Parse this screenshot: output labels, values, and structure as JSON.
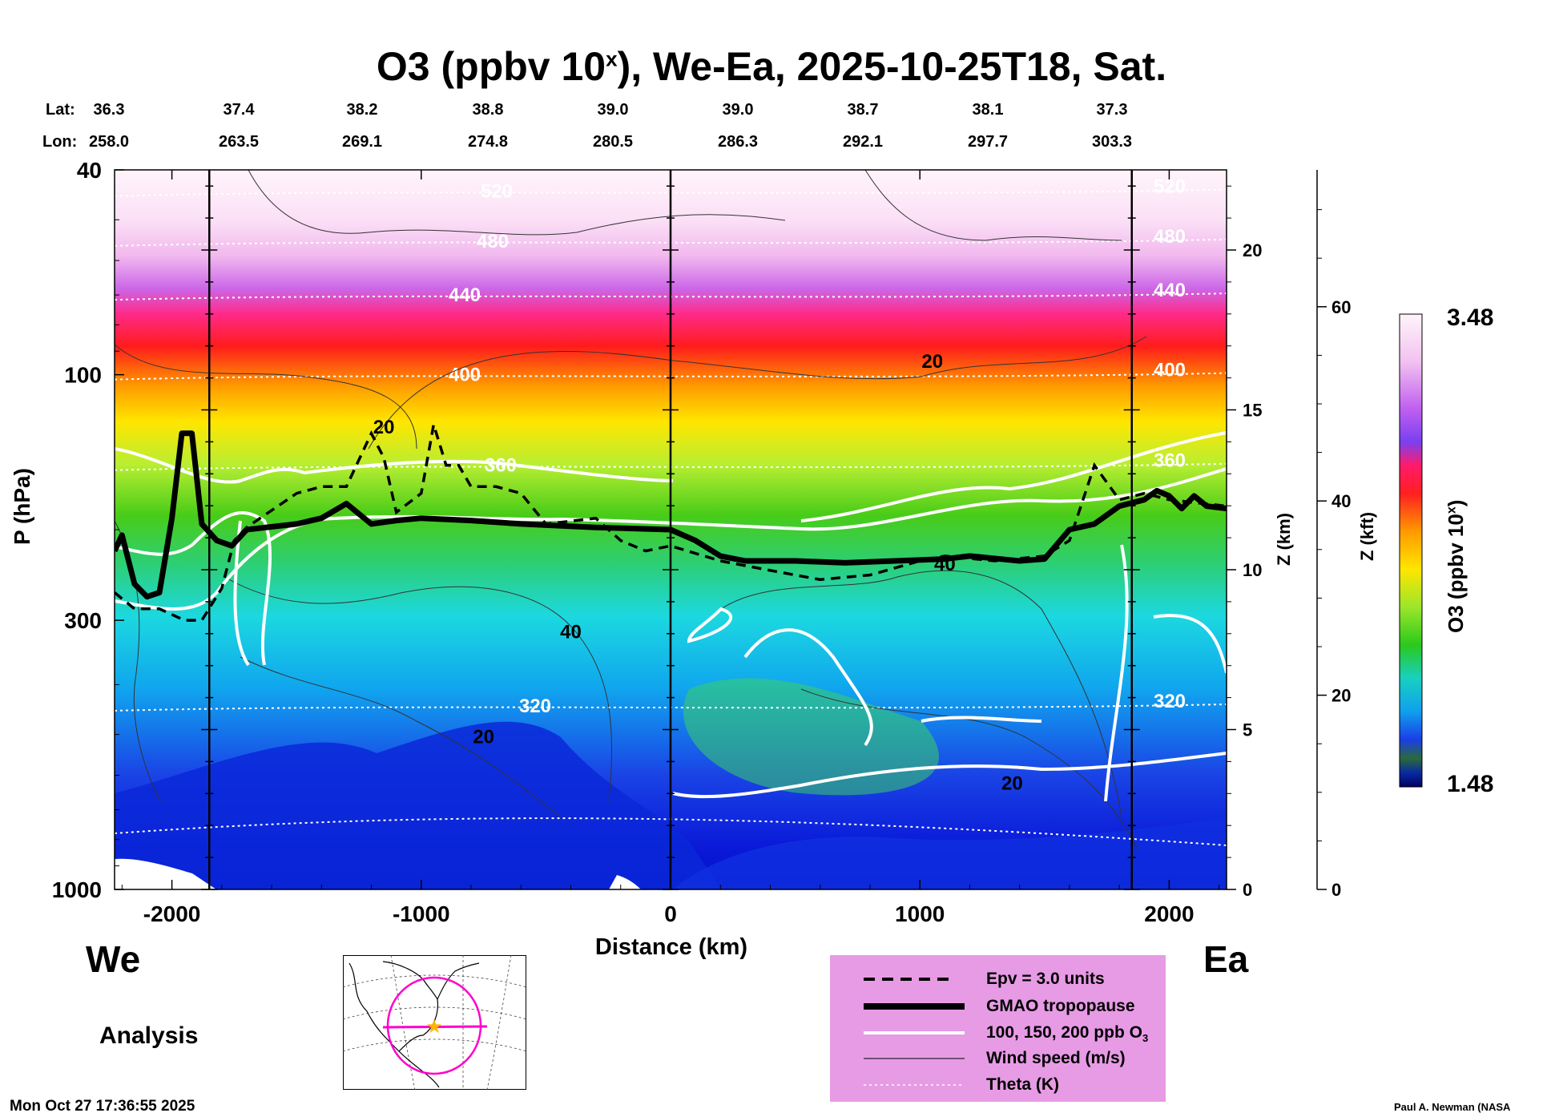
{
  "title": {
    "main": "O3 (ppbv 10",
    "sup": "x",
    "rest": "), We-Ea, 2025-10-25T18, Sat."
  },
  "header": {
    "lat_label": "Lat:",
    "lon_label": "Lon:",
    "lat": [
      "36.3",
      "37.4",
      "38.2",
      "38.8",
      "39.0",
      "39.0",
      "38.7",
      "38.1",
      "37.3"
    ],
    "lon": [
      "258.0",
      "263.5",
      "269.1",
      "274.8",
      "280.5",
      "286.3",
      "292.1",
      "297.7",
      "303.3"
    ]
  },
  "chart_data": {
    "type": "heatmap",
    "title": "O3 (ppbv 10^x), We-Ea, 2025-10-25T18, Sat.",
    "xlabel": "Distance (km)",
    "ylabel": "P (hPa)",
    "y2label": "Z (km)",
    "y3label": "Z (kft)",
    "xlim": [
      -2230,
      2230
    ],
    "ylim_hPa": [
      1000,
      40
    ],
    "x_ticks": [
      "-2000",
      "-1000",
      "0",
      "1000",
      "2000"
    ],
    "x_tick_values": [
      -2000,
      -1000,
      0,
      1000,
      2000
    ],
    "y_ticks": [
      "40",
      "100",
      "300",
      "1000"
    ],
    "y_tick_values": [
      40,
      100,
      300,
      1000
    ],
    "z_km_ticks": [
      "0",
      "5",
      "10",
      "15",
      "20"
    ],
    "z_km_values": [
      0,
      5,
      10,
      15,
      20
    ],
    "z_kft_ticks": [
      "0",
      "20",
      "40",
      "60"
    ],
    "z_kft_values": [
      0,
      20,
      40,
      60
    ],
    "vertical_markers_km": [
      -1850,
      0,
      1850
    ],
    "colorbar": {
      "label": "O3 (ppbv 10",
      "sup": "x",
      "close": ")",
      "max": "3.48",
      "min": "1.48"
    },
    "tropopause_hPa": [
      [
        -2230,
        220
      ],
      [
        -2200,
        205
      ],
      [
        -2150,
        255
      ],
      [
        -2100,
        270
      ],
      [
        -2050,
        265
      ],
      [
        -2000,
        190
      ],
      [
        -1960,
        130
      ],
      [
        -1920,
        130
      ],
      [
        -1880,
        195
      ],
      [
        -1820,
        210
      ],
      [
        -1760,
        215
      ],
      [
        -1700,
        200
      ],
      [
        -1500,
        195
      ],
      [
        -1400,
        190
      ],
      [
        -1300,
        178
      ],
      [
        -1200,
        195
      ],
      [
        -1100,
        192
      ],
      [
        -1000,
        190
      ],
      [
        -800,
        192
      ],
      [
        -600,
        195
      ],
      [
        -300,
        198
      ],
      [
        0,
        200
      ],
      [
        100,
        210
      ],
      [
        200,
        225
      ],
      [
        300,
        230
      ],
      [
        500,
        230
      ],
      [
        700,
        232
      ],
      [
        900,
        230
      ],
      [
        1100,
        228
      ],
      [
        1200,
        225
      ],
      [
        1400,
        230
      ],
      [
        1500,
        228
      ],
      [
        1600,
        200
      ],
      [
        1700,
        195
      ],
      [
        1800,
        180
      ],
      [
        1900,
        175
      ],
      [
        1950,
        168
      ],
      [
        2000,
        172
      ],
      [
        2050,
        182
      ],
      [
        2100,
        172
      ],
      [
        2150,
        180
      ],
      [
        2230,
        182
      ]
    ],
    "epv_hPa": [
      [
        -2230,
        265
      ],
      [
        -2150,
        285
      ],
      [
        -2050,
        285
      ],
      [
        -1950,
        300
      ],
      [
        -1880,
        300
      ],
      [
        -1800,
        260
      ],
      [
        -1750,
        210
      ],
      [
        -1700,
        198
      ],
      [
        -1500,
        170
      ],
      [
        -1400,
        165
      ],
      [
        -1300,
        165
      ],
      [
        -1200,
        130
      ],
      [
        -1150,
        145
      ],
      [
        -1100,
        185
      ],
      [
        -1000,
        170
      ],
      [
        -950,
        125
      ],
      [
        -900,
        150
      ],
      [
        -850,
        150
      ],
      [
        -800,
        165
      ],
      [
        -700,
        165
      ],
      [
        -600,
        170
      ],
      [
        -500,
        195
      ],
      [
        -300,
        190
      ],
      [
        -200,
        210
      ],
      [
        -100,
        220
      ],
      [
        0,
        215
      ],
      [
        200,
        230
      ],
      [
        400,
        240
      ],
      [
        600,
        250
      ],
      [
        800,
        245
      ],
      [
        1000,
        230
      ],
      [
        1100,
        225
      ],
      [
        1300,
        230
      ],
      [
        1500,
        225
      ],
      [
        1600,
        210
      ],
      [
        1700,
        150
      ],
      [
        1800,
        175
      ],
      [
        1900,
        170
      ],
      [
        2000,
        175
      ],
      [
        2230,
        180
      ]
    ],
    "theta_K": [
      {
        "label": "520",
        "p": 44
      },
      {
        "label": "480",
        "p": 55
      },
      {
        "label": "440",
        "p": 70
      },
      {
        "label": "400",
        "p": 100
      },
      {
        "label": "360",
        "p": 150
      },
      {
        "label": "320",
        "p": 440
      }
    ],
    "wind_speed_labels": [
      {
        "label": "20",
        "x": 1050,
        "p": 97
      },
      {
        "label": "20",
        "x": -1150,
        "p": 130
      },
      {
        "label": "40",
        "x": -400,
        "p": 325
      },
      {
        "label": "40",
        "x": 1100,
        "p": 240
      },
      {
        "label": "20",
        "x": -750,
        "p": 520
      },
      {
        "label": "20",
        "x": 1370,
        "p": 640
      }
    ]
  },
  "sides": {
    "west": "We",
    "east": "Ea",
    "mode": "Analysis"
  },
  "legend": {
    "items": [
      "Epv = 3.0 units",
      "GMAO tropopause",
      "100, 150, 200 ppb O",
      "Wind speed (m/s)",
      "Theta (K)"
    ],
    "o3_sub": "3"
  },
  "timestamp": "Mon Oct 27 17:36:55 2025",
  "credit": "Paul A. Newman (NASA"
}
